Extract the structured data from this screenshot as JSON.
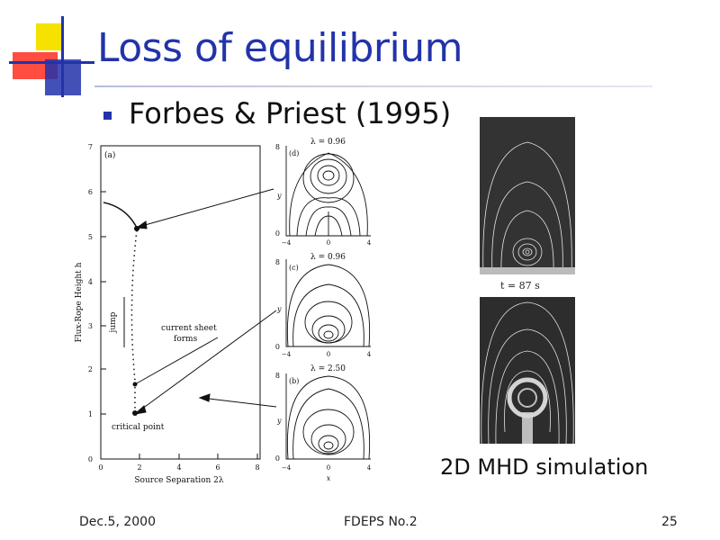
{
  "slide": {
    "title": "Loss of equilibrium",
    "bullet": "Forbes & Priest (1995)",
    "footer_left": "Dec.5, 2000",
    "footer_center": "FDEPS No.2",
    "footer_right": "25",
    "accent_color": "#2233aa"
  },
  "figure": {
    "panel_a_label": "(a)",
    "y_axis_label": "Flux-Rope Height h",
    "x_axis_label": "Source Separation 2λ",
    "y_ticks": [
      "0",
      "1",
      "2",
      "3",
      "4",
      "5",
      "6",
      "7"
    ],
    "x_ticks": [
      "0",
      "2",
      "4",
      "6",
      "8"
    ],
    "jump_label": "jump",
    "current_sheet_label_line1": "current sheet",
    "current_sheet_label_line2": "forms",
    "critical_point_label": "critical point",
    "panel_d_label": "(d)",
    "panel_c_label": "(c)",
    "panel_b_label": "(b)",
    "lambda_d": "λ = 0.96",
    "lambda_c": "λ = 0.96",
    "lambda_b": "λ = 2.50",
    "small_y_label": "y",
    "small_x_label": "x",
    "small_top_tick": "8",
    "small_bottom_tick": "0",
    "small_x_ticks": [
      "−4",
      "0",
      "4"
    ]
  },
  "simulation": {
    "time_label": "t = 87 s",
    "caption": "2D MHD simulation"
  }
}
